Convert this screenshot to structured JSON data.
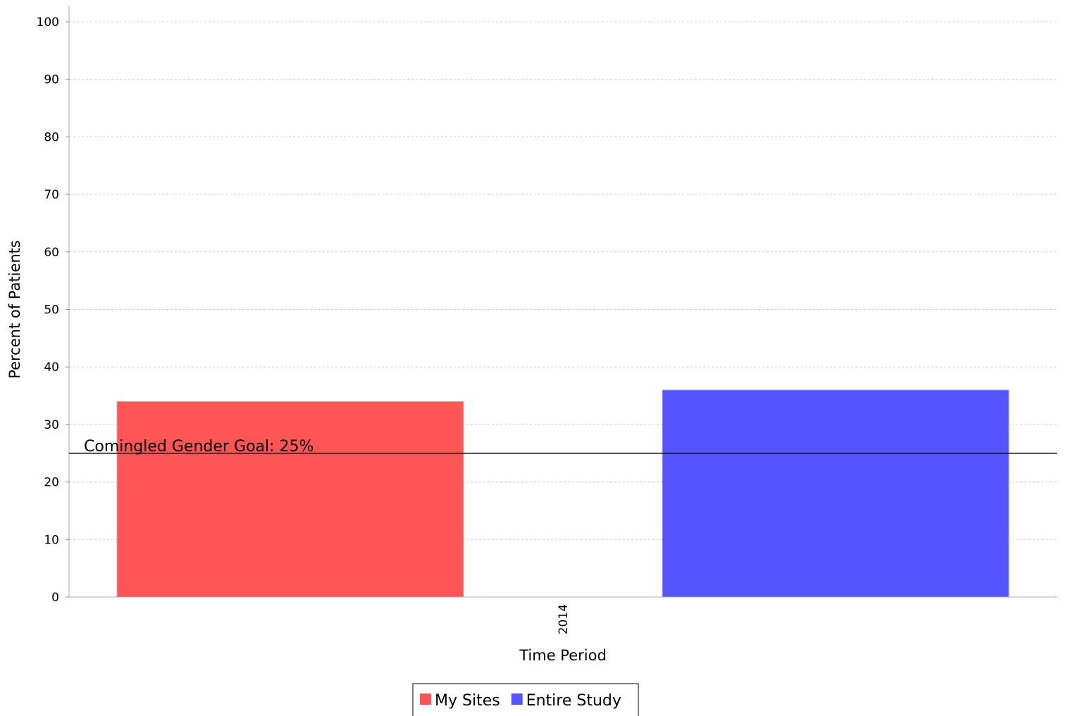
{
  "chart_data": {
    "type": "bar",
    "categories": [
      "2014"
    ],
    "series": [
      {
        "name": "My Sites",
        "values": [
          34
        ],
        "color": "#ff5555"
      },
      {
        "name": "Entire Study",
        "values": [
          36
        ],
        "color": "#5555ff"
      }
    ],
    "xlabel": "Time Period",
    "ylabel": "Percent of Patients",
    "ylim": [
      0,
      100
    ],
    "yticks": [
      0,
      10,
      20,
      30,
      40,
      50,
      60,
      70,
      80,
      90,
      100
    ],
    "grid": true,
    "legend_position": "bottom",
    "reference_line": {
      "value": 25,
      "label": "Comingled Gender Goal: 25%"
    }
  }
}
